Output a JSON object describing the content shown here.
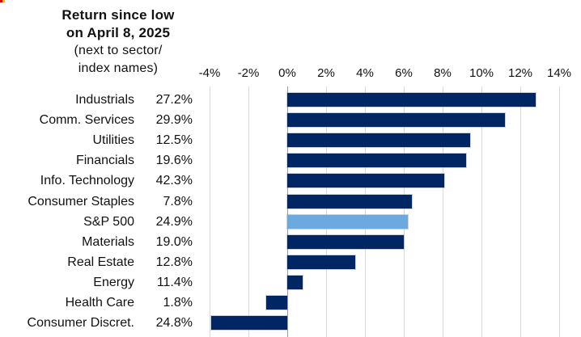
{
  "logo_fragment": {
    "red_color": "#e00000",
    "yellow_color": "#ffc000"
  },
  "chart_data": {
    "type": "bar",
    "orientation": "horizontal",
    "title": "Return since low on April 8, 2025 (next to sector/index names)",
    "title_lines_bold": [
      "Return since low",
      "on April 8, 2025"
    ],
    "title_lines_regular": [
      "(next to sector/",
      "index names)"
    ],
    "categories": [
      "Industrials",
      "Comm. Services",
      "Utilities",
      "Financials",
      "Info. Technology",
      "Consumer Staples",
      "S&P 500",
      "Materials",
      "Real Estate",
      "Energy",
      "Health Care",
      "Consumer Discret."
    ],
    "return_since_low_labels": [
      "27.2%",
      "29.9%",
      "12.5%",
      "19.6%",
      "42.3%",
      "7.8%",
      "24.9%",
      "19.0%",
      "12.8%",
      "11.4%",
      "1.8%",
      "24.8%"
    ],
    "bar_values_pct": [
      12.8,
      11.2,
      9.4,
      9.2,
      8.1,
      6.4,
      6.2,
      6.0,
      3.5,
      0.8,
      -1.1,
      -3.9
    ],
    "x_ticks": [
      -4,
      -2,
      0,
      2,
      4,
      6,
      8,
      10,
      12,
      14
    ],
    "x_tick_labels": [
      "-4%",
      "-2%",
      "0%",
      "2%",
      "4%",
      "6%",
      "8%",
      "10%",
      "12%",
      "14%"
    ],
    "xlim": [
      -5,
      15
    ],
    "grid": true,
    "legend": "none",
    "bar_color": "#002664",
    "highlight_color": "#6ca9df",
    "highlight_index": 6,
    "highlight_category": "S&P 500",
    "gridline_color": "#d9d9d9",
    "zero_line_color": "#9b9b9b"
  }
}
